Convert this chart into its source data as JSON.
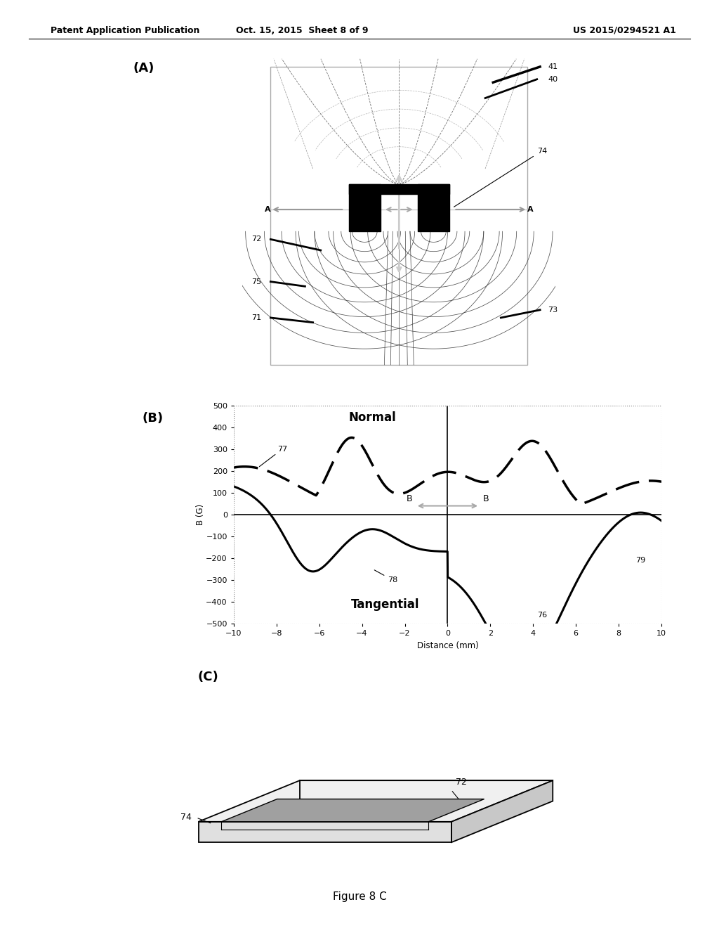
{
  "header_left": "Patent Application Publication",
  "header_center": "Oct. 15, 2015  Sheet 8 of 9",
  "header_right": "US 2015/0294521 A1",
  "figure_label": "Figure 8 C",
  "panel_A_label": "(A)",
  "panel_B_label": "(B)",
  "panel_C_label": "(C)",
  "graph_xlabel": "Distance (mm)",
  "graph_ylabel": "B (G)",
  "graph_yticks": [
    -500,
    -400,
    -300,
    -200,
    -100,
    0,
    100,
    200,
    300,
    400,
    500
  ],
  "graph_xticks": [
    -10,
    -8,
    -6,
    -4,
    -2,
    0,
    2,
    4,
    6,
    8,
    10
  ],
  "graph_ylim": [
    -500,
    500
  ],
  "graph_xlim": [
    -10,
    10
  ],
  "normal_label": "Normal",
  "tangential_label": "Tangential",
  "bg_color": "#ffffff"
}
